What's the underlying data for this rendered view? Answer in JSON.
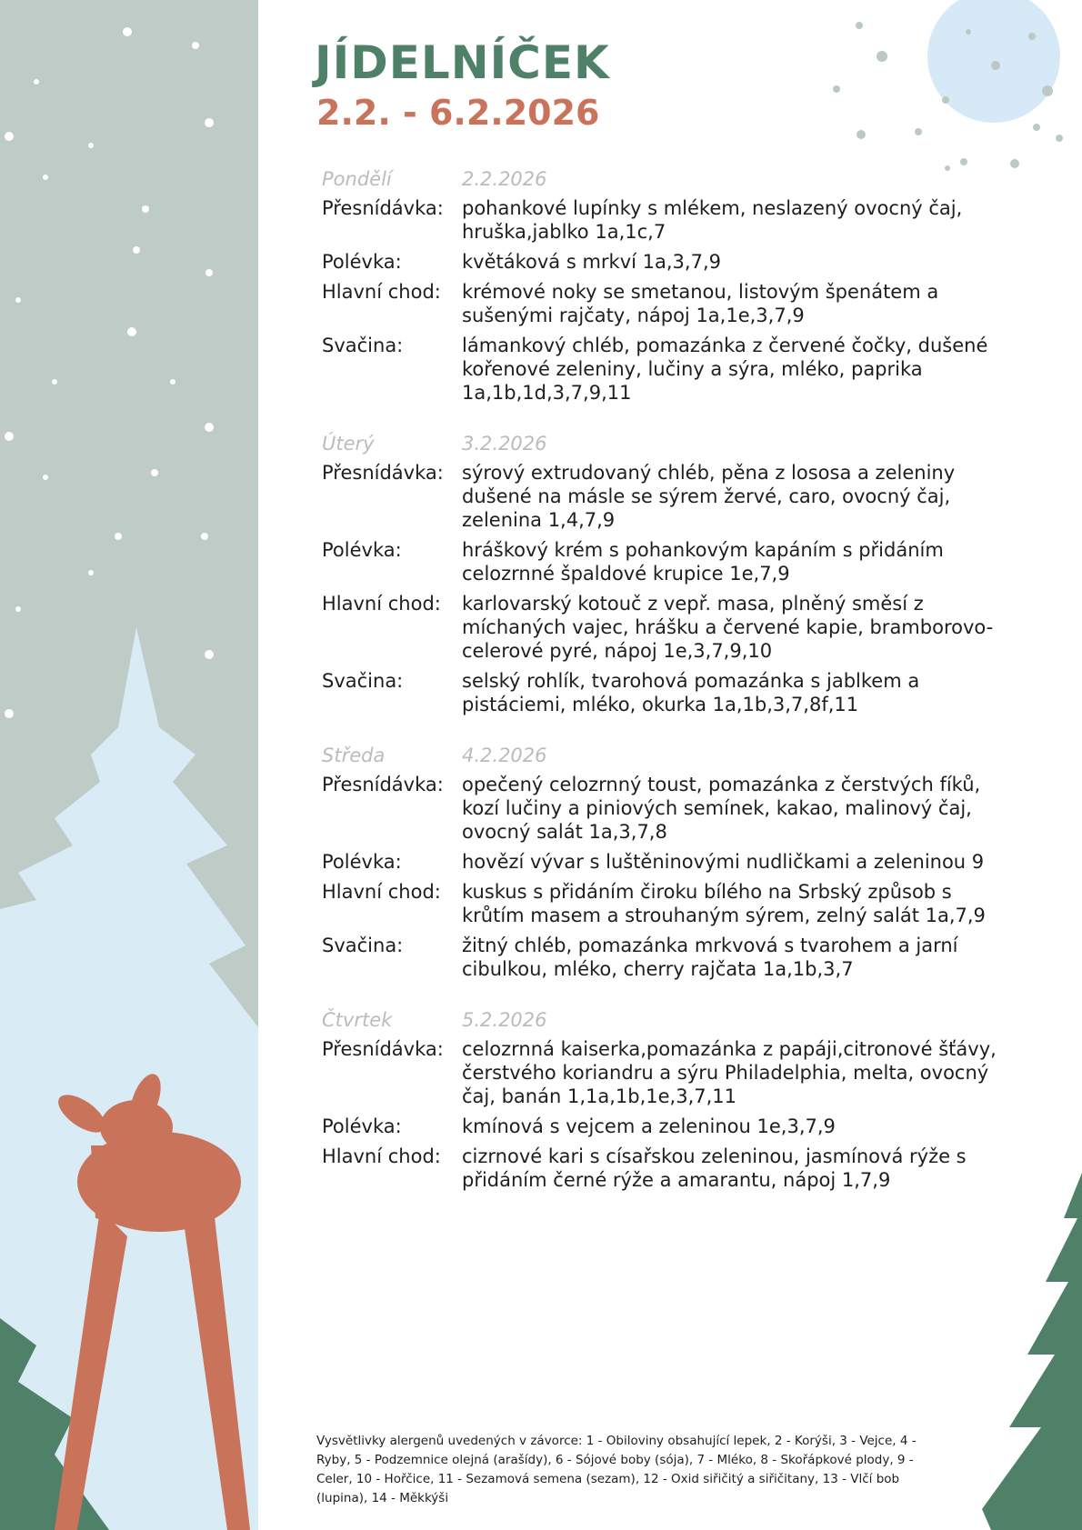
{
  "header": {
    "title": "JÍDELNÍČEK",
    "date_range": "2.2. - 6.2.2026"
  },
  "colors": {
    "title": "#4f8068",
    "date_range": "#c8735a",
    "day_header": "#b9bcbe",
    "panel": "#bfcbc6",
    "tree": "#d9ebf5",
    "deer": "#c8735a",
    "pine": "#4f8068"
  },
  "days": [
    {
      "name": "Pondělí",
      "date": "2.2.2026",
      "meals": [
        {
          "label": "Přesnídávka:",
          "text": "pohankové lupínky s mlékem, neslazený ovocný čaj, hruška,jablko 1a,1c,7"
        },
        {
          "label": "Polévka:",
          "text": "květáková s mrkví 1a,3,7,9"
        },
        {
          "label": "Hlavní chod:",
          "text": "krémové noky se smetanou, listovým špenátem a sušenými rajčaty, nápoj 1a,1e,3,7,9"
        },
        {
          "label": "Svačina:",
          "text": "lámankový chléb, pomazánka z červené čočky, dušené kořenové zeleniny, lučiny a sýra, mléko, paprika 1a,1b,1d,3,7,9,11"
        }
      ]
    },
    {
      "name": "Úterý",
      "date": "3.2.2026",
      "meals": [
        {
          "label": "Přesnídávka:",
          "text": "sýrový extrudovaný chléb, pěna z lososa a zeleniny dušené na másle se sýrem žervé, caro, ovocný čaj, zelenina 1,4,7,9"
        },
        {
          "label": "Polévka:",
          "text": "hráškový krém s pohankovým kapáním s přidáním celozrnné špaldové krupice 1e,7,9"
        },
        {
          "label": "Hlavní chod:",
          "text": "karlovarský kotouč z vepř. masa, plněný směsí z míchaných vajec, hrášku a červené kapie, bramborovo-celerové pyré, nápoj 1e,3,7,9,10"
        },
        {
          "label": "Svačina:",
          "text": "selský rohlík, tvarohová pomazánka s jablkem a pistáciemi, mléko, okurka 1a,1b,3,7,8f,11"
        }
      ]
    },
    {
      "name": "Středa",
      "date": "4.2.2026",
      "meals": [
        {
          "label": "Přesnídávka:",
          "text": "opečený celozrnný toust, pomazánka z čerstvých fíků, kozí lučiny a piniových semínek, kakao, malinový čaj, ovocný salát 1a,3,7,8"
        },
        {
          "label": "Polévka:",
          "text": "hovězí vývar s luštěninovými nudličkami a zeleninou 9"
        },
        {
          "label": "Hlavní chod:",
          "text": "kuskus s přidáním čiroku bílého na Srbský způsob s krůtím masem a strouhaným sýrem, zelný salát 1a,7,9"
        },
        {
          "label": "Svačina:",
          "text": "žitný chléb, pomazánka mrkvová s tvarohem a jarní cibulkou, mléko, cherry rajčata 1a,1b,3,7"
        }
      ]
    },
    {
      "name": "Čtvrtek",
      "date": "5.2.2026",
      "meals": [
        {
          "label": "Přesnídávka:",
          "text": "celozrnná kaiserka,pomazánka z papáji,citronové šťávy, čerstvého koriandru a sýru Philadelphia, melta, ovocný čaj, banán 1,1a,1b,1e,3,7,11"
        },
        {
          "label": "Polévka:",
          "text": "kmínová s vejcem a zeleninou 1e,3,7,9"
        },
        {
          "label": "Hlavní chod:",
          "text": "cizrnové kari s císařskou zeleninou, jasmínová rýže s přidáním černé rýže a amarantu, nápoj 1,7,9"
        }
      ]
    }
  ],
  "legend": "Vysvětlivky alergenů uvedených v závorce: 1 - Obiloviny obsahující lepek, 2 - Korýši, 3 - Vejce, 4 - Ryby, 5 - Podzemnice olejná (arašídy), 6 - Sójové boby (sója), 7 - Mléko, 8 - Skořápkové plody, 9 - Celer, 10 - Hořčice, 11 - Sezamová semena (sezam), 12 - Oxid siřičitý a siřičitany, 13 - Vlčí bob (lupina), 14 - Měkkýši"
}
